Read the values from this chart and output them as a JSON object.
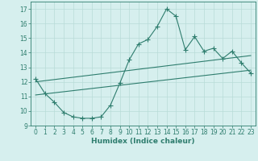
{
  "main_x": [
    0,
    1,
    2,
    3,
    4,
    5,
    6,
    7,
    8,
    9,
    10,
    11,
    12,
    13,
    14,
    15,
    16,
    17,
    18,
    19,
    20,
    21,
    22,
    23
  ],
  "main_y": [
    12.2,
    11.2,
    10.6,
    9.9,
    9.6,
    9.5,
    9.5,
    9.6,
    10.4,
    11.9,
    13.5,
    14.6,
    14.9,
    15.8,
    17.0,
    16.5,
    14.2,
    15.1,
    14.1,
    14.3,
    13.6,
    14.1,
    13.3,
    12.6
  ],
  "line1_x": [
    0,
    23
  ],
  "line1_y": [
    12.0,
    13.8
  ],
  "line2_x": [
    0,
    23
  ],
  "line2_y": [
    11.1,
    12.8
  ],
  "line_color": "#2e7d6e",
  "bg_color": "#d6efee",
  "grid_color": "#b8dcd8",
  "text_color": "#2e7d6e",
  "xlabel": "Humidex (Indice chaleur)",
  "xlim": [
    -0.5,
    23.5
  ],
  "ylim": [
    9,
    17.5
  ],
  "yticks": [
    9,
    10,
    11,
    12,
    13,
    14,
    15,
    16,
    17
  ],
  "xticks": [
    0,
    1,
    2,
    3,
    4,
    5,
    6,
    7,
    8,
    9,
    10,
    11,
    12,
    13,
    14,
    15,
    16,
    17,
    18,
    19,
    20,
    21,
    22,
    23
  ],
  "marker": "+",
  "markersize": 4.0,
  "linewidth_main": 0.8,
  "linewidth_trend": 0.8,
  "tick_labelsize": 5.5,
  "xlabel_fontsize": 6.5
}
